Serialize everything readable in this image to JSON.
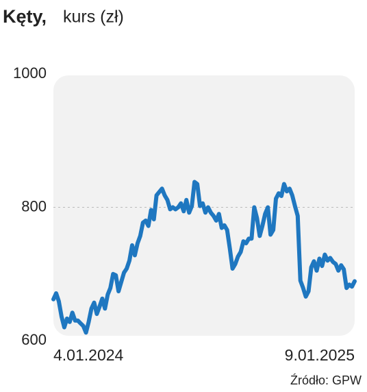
{
  "chart_data": {
    "type": "line",
    "title": "Kęty,",
    "subtitle": "kurs (zł)",
    "source": "Źródło: GPW",
    "categories": [
      "4.01.2024",
      null,
      null,
      null,
      null,
      null,
      null,
      null,
      null,
      null,
      null,
      null,
      null,
      null,
      null,
      null,
      null,
      null,
      null,
      null,
      null,
      null,
      null,
      null,
      null,
      null,
      null,
      null,
      null,
      null,
      null,
      null,
      null,
      null,
      null,
      null,
      null,
      null,
      null,
      null,
      null,
      null,
      null,
      null,
      null,
      null,
      null,
      null,
      null,
      null,
      null,
      null,
      null,
      null,
      null,
      null,
      null,
      null,
      null,
      null,
      null,
      null,
      null,
      null,
      null,
      null,
      null,
      null,
      null,
      null,
      null,
      null,
      null,
      null,
      null,
      null,
      null,
      null,
      null,
      null,
      null,
      null,
      null,
      null,
      null,
      null,
      null,
      null,
      null,
      null,
      null,
      null,
      null,
      null,
      null,
      null,
      null,
      null,
      null,
      null,
      null,
      null,
      null,
      null,
      null,
      null,
      null,
      null,
      null,
      null,
      null,
      "9.01.2025"
    ],
    "values": [
      662,
      671,
      659,
      636,
      620,
      633,
      628,
      642,
      630,
      630,
      626,
      622,
      612,
      628,
      648,
      657,
      640,
      651,
      663,
      648,
      669,
      679,
      700,
      698,
      674,
      688,
      702,
      708,
      720,
      743,
      728,
      746,
      757,
      777,
      780,
      772,
      796,
      782,
      818,
      823,
      828,
      818,
      811,
      797,
      800,
      797,
      800,
      806,
      794,
      811,
      792,
      802,
      838,
      835,
      802,
      806,
      792,
      800,
      792,
      787,
      780,
      790,
      769,
      773,
      766,
      738,
      708,
      715,
      726,
      733,
      749,
      746,
      753,
      753,
      800,
      784,
      757,
      772,
      790,
      800,
      759,
      766,
      813,
      821,
      817,
      835,
      824,
      828,
      818,
      802,
      787,
      690,
      679,
      666,
      674,
      710,
      719,
      705,
      723,
      712,
      729,
      720,
      724,
      718,
      715,
      705,
      713,
      707,
      679,
      684,
      681,
      689
    ],
    "color": "#1f77c0",
    "ylim": [
      600,
      1000
    ],
    "yticks": [
      600,
      800,
      1000
    ],
    "grid": true
  }
}
